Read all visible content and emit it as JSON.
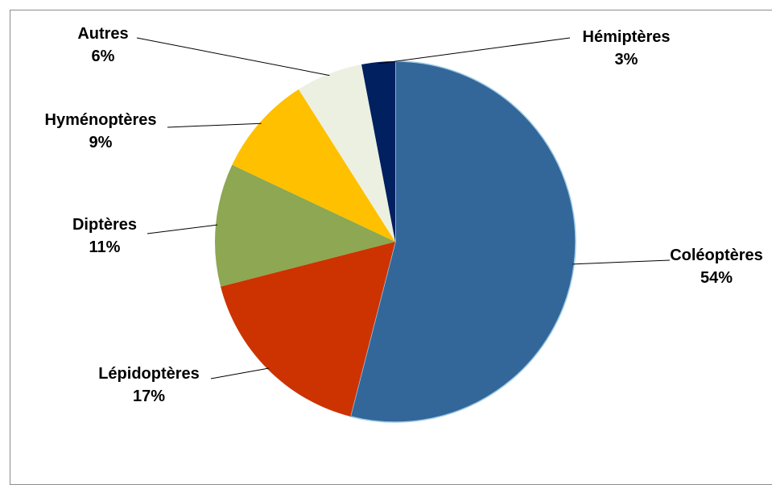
{
  "chart_data": {
    "type": "pie",
    "title": "",
    "legend": "none",
    "slices": [
      {
        "name": "Coléoptères",
        "value": 54,
        "value_label": "54%",
        "color": "#336699"
      },
      {
        "name": "Lépidoptères",
        "value": 17,
        "value_label": "17%",
        "color": "#CC3300"
      },
      {
        "name": "Diptères",
        "value": 11,
        "value_label": "11%",
        "color": "#8DA752"
      },
      {
        "name": "Hyménoptères",
        "value": 9,
        "value_label": "9%",
        "color": "#FFC000"
      },
      {
        "name": "Autres",
        "value": 6,
        "value_label": "6%",
        "color": "#EBF0E1"
      },
      {
        "name": "Hémiptères",
        "value": 3,
        "value_label": "3%",
        "color": "#002060"
      }
    ]
  }
}
